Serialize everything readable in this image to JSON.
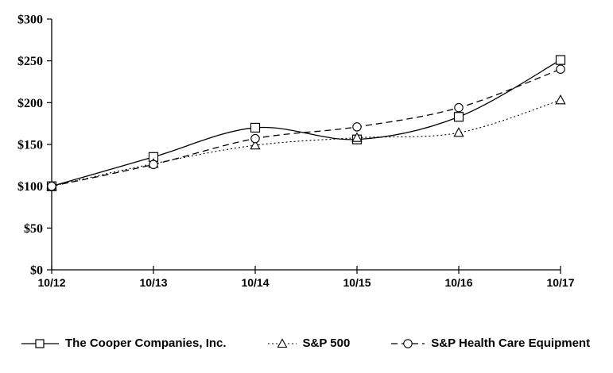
{
  "chart_data": {
    "type": "line",
    "title": "",
    "xlabel": "",
    "ylabel": "",
    "categories": [
      "10/12",
      "10/13",
      "10/14",
      "10/15",
      "10/16",
      "10/17"
    ],
    "series": [
      {
        "name": "The Cooper Companies, Inc.",
        "marker": "square",
        "line_style": "solid",
        "values": [
          100,
          135,
          170,
          156,
          183,
          251
        ]
      },
      {
        "name": "S&P 500",
        "marker": "triangle",
        "line_style": "dotted",
        "values": [
          100,
          127,
          149,
          158,
          164,
          203
        ]
      },
      {
        "name": "S&P Health Care Equipment",
        "marker": "circle",
        "line_style": "dashed",
        "values": [
          100,
          126,
          157,
          171,
          194,
          240
        ]
      }
    ],
    "y_tick_labels": [
      "$0",
      "$50",
      "$100",
      "$150",
      "$200",
      "$250",
      "$300"
    ],
    "y_tick_values": [
      0,
      50,
      100,
      150,
      200,
      250,
      300
    ],
    "ylim": [
      0,
      300
    ],
    "currency_prefix": "$",
    "grid": false,
    "smoothed_lines": true,
    "legend_position": "bottom",
    "line_color": "#000000",
    "marker_fill": "#ffffff",
    "background": "#ffffff"
  }
}
